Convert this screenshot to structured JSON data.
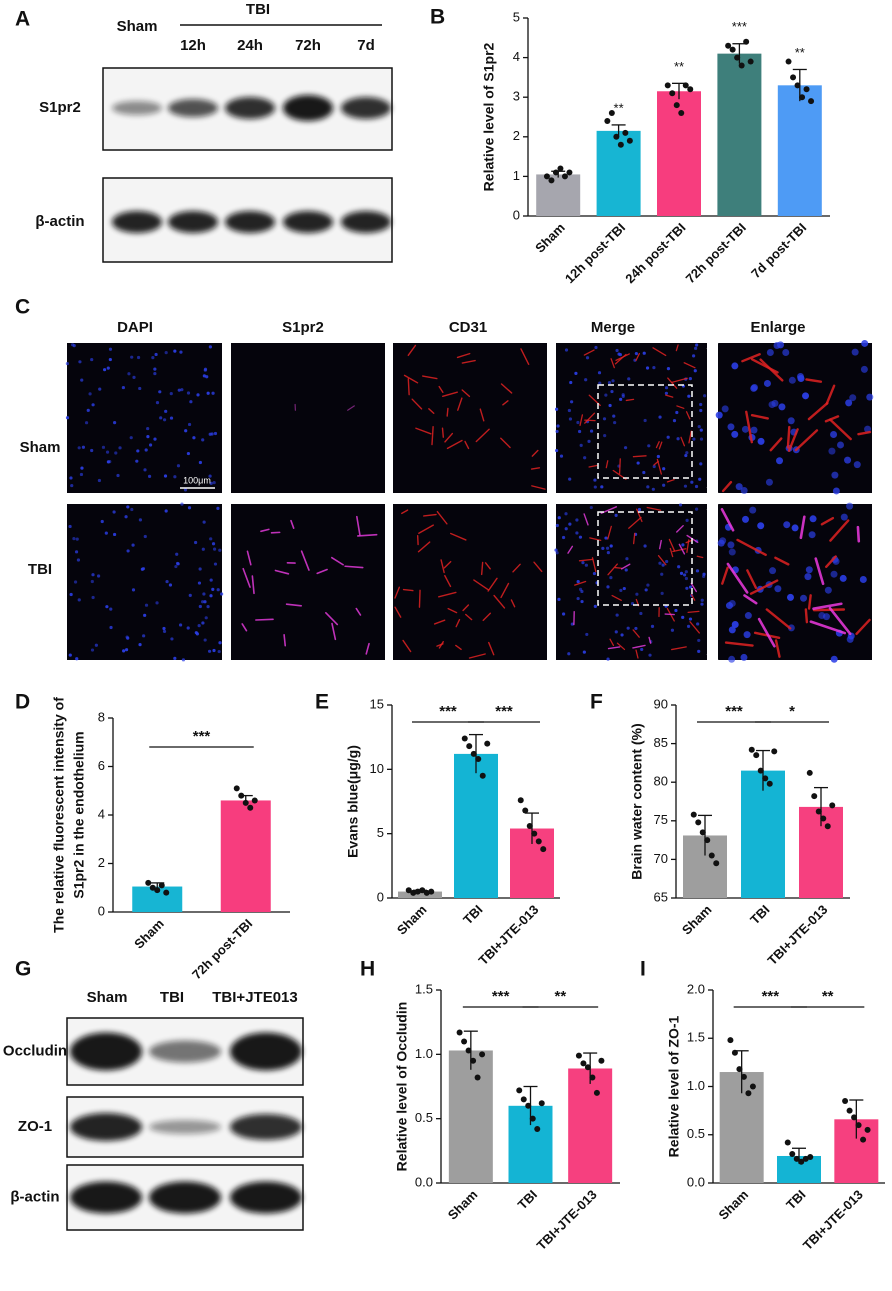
{
  "panel_labels": [
    "A",
    "B",
    "C",
    "D",
    "E",
    "F",
    "G",
    "H",
    "I"
  ],
  "blot_a": {
    "group": "TBI",
    "lanes": [
      "Sham",
      "12h",
      "24h",
      "72h",
      "7d"
    ],
    "rows": [
      "S1pr2",
      "β-actin"
    ]
  },
  "micrographs": {
    "columns": [
      "DAPI",
      "S1pr2",
      "CD31",
      "Merge",
      "Enlarge"
    ],
    "rows": [
      "Sham",
      "TBI"
    ],
    "scale_bar": "100μm"
  },
  "blot_g": {
    "lanes": [
      "Sham",
      "TBI",
      "TBI+JTE013"
    ],
    "rows": [
      "Occludin",
      "ZO-1",
      "β-actin"
    ]
  },
  "chart_data": [
    {
      "type": "bar",
      "ylabel": "Relative level of S1pr2",
      "categories": [
        "Sham",
        "12h post-TBI",
        "24h post-TBI",
        "72h post-TBI",
        "7d post-TBI"
      ],
      "values": [
        1.05,
        2.15,
        3.15,
        4.1,
        3.3
      ],
      "errors": [
        0.08,
        0.15,
        0.2,
        0.25,
        0.4
      ],
      "points": [
        [
          1.0,
          0.9,
          1.1,
          1.2,
          1.0,
          1.1
        ],
        [
          2.4,
          2.6,
          2.0,
          1.8,
          2.1,
          1.9
        ],
        [
          3.3,
          3.1,
          2.8,
          2.6,
          3.3,
          3.2
        ],
        [
          4.3,
          4.2,
          4.0,
          3.8,
          4.4,
          3.9
        ],
        [
          3.9,
          3.5,
          3.3,
          3.0,
          3.2,
          2.9
        ]
      ],
      "colors": [
        "#a6a6ae",
        "#17b5d3",
        "#f73d7e",
        "#3e7f7b",
        "#4e9bf5"
      ],
      "annotations": [
        null,
        "**",
        "**",
        "***",
        "**"
      ],
      "ylim": [
        0,
        5
      ],
      "yticks": [
        0,
        1,
        2,
        3,
        4,
        5
      ]
    },
    {
      "type": "bar",
      "ylabel": [
        "The relative fluorescent intensity of",
        "S1pr2 in the endothelium"
      ],
      "categories": [
        "Sham",
        "72h post-TBI"
      ],
      "values": [
        1.05,
        4.6
      ],
      "errors": [
        0.15,
        0.2
      ],
      "points": [
        [
          1.2,
          1.0,
          0.9,
          1.1,
          0.8
        ],
        [
          5.1,
          4.8,
          4.5,
          4.3,
          4.6
        ]
      ],
      "colors": [
        "#17b5d3",
        "#f73d7e"
      ],
      "comparisons": [
        {
          "label": "***",
          "between": [
            "Sham",
            "72h post-TBI"
          ]
        }
      ],
      "ylim": [
        0,
        8
      ],
      "yticks": [
        0,
        2,
        4,
        6,
        8
      ]
    },
    {
      "type": "bar",
      "ylabel": "Evans blue(μg/g)",
      "categories": [
        "Sham",
        "TBI",
        "TBI+JTE-013"
      ],
      "values": [
        0.5,
        11.2,
        5.4
      ],
      "errors": [
        0.1,
        1.5,
        1.2
      ],
      "points": [
        [
          0.6,
          0.4,
          0.5,
          0.6,
          0.4,
          0.5
        ],
        [
          12.4,
          11.8,
          11.2,
          10.8,
          9.5,
          12.0
        ],
        [
          7.6,
          6.8,
          5.6,
          5.0,
          4.4,
          3.8
        ]
      ],
      "colors": [
        "#9e9e9e",
        "#14b4d4",
        "#f6407f"
      ],
      "comparisons": [
        {
          "label": "***",
          "between": [
            "Sham",
            "TBI"
          ]
        },
        {
          "label": "***",
          "between": [
            "TBI",
            "TBI+JTE-013"
          ]
        }
      ],
      "ylim": [
        0,
        15
      ],
      "yticks": [
        0,
        5,
        10,
        15
      ]
    },
    {
      "type": "bar",
      "ylabel": "Brain water content (%)",
      "categories": [
        "Sham",
        "TBI",
        "TBI+JTE-013"
      ],
      "values": [
        73.1,
        81.5,
        76.8
      ],
      "errors": [
        2.6,
        2.6,
        2.5
      ],
      "points": [
        [
          75.8,
          74.8,
          73.5,
          72.5,
          70.5,
          69.5
        ],
        [
          84.2,
          83.5,
          81.5,
          80.5,
          79.8,
          84.0
        ],
        [
          81.2,
          78.2,
          76.2,
          75.3,
          74.3,
          77.0
        ]
      ],
      "colors": [
        "#9e9e9e",
        "#14b4d4",
        "#f6407f"
      ],
      "comparisons": [
        {
          "label": "***",
          "between": [
            "Sham",
            "TBI"
          ]
        },
        {
          "label": "*",
          "between": [
            "TBI",
            "TBI+JTE-013"
          ]
        }
      ],
      "ylim": [
        65,
        90
      ],
      "yticks": [
        65,
        70,
        75,
        80,
        85,
        90
      ]
    },
    {
      "type": "bar",
      "ylabel": "Relative level of Occludin",
      "categories": [
        "Sham",
        "TBI",
        "TBI+JTE-013"
      ],
      "values": [
        1.03,
        0.6,
        0.89
      ],
      "errors": [
        0.15,
        0.15,
        0.12
      ],
      "points": [
        [
          1.17,
          1.1,
          1.03,
          0.95,
          0.82,
          1.0
        ],
        [
          0.72,
          0.65,
          0.6,
          0.5,
          0.42,
          0.62
        ],
        [
          0.99,
          0.93,
          0.9,
          0.82,
          0.7,
          0.95
        ]
      ],
      "colors": [
        "#9e9e9e",
        "#14b4d4",
        "#f6407f"
      ],
      "comparisons": [
        {
          "label": "***",
          "between": [
            "Sham",
            "TBI"
          ]
        },
        {
          "label": "**",
          "between": [
            "TBI",
            "TBI+JTE-013"
          ]
        }
      ],
      "ylim": [
        0,
        1.5
      ],
      "yticks": [
        {
          "value": 0,
          "label": "0.0"
        },
        0.5,
        {
          "value": 1,
          "label": "1.0"
        },
        1.5
      ]
    },
    {
      "type": "bar",
      "ylabel": "Relative level of ZO-1",
      "categories": [
        "Sham",
        "TBI",
        "TBI+JTE-013"
      ],
      "values": [
        1.15,
        0.28,
        0.66
      ],
      "errors": [
        0.22,
        0.08,
        0.2
      ],
      "points": [
        [
          1.48,
          1.35,
          1.18,
          1.1,
          0.93,
          1.0
        ],
        [
          0.42,
          0.3,
          0.25,
          0.22,
          0.25,
          0.27
        ],
        [
          0.85,
          0.75,
          0.68,
          0.6,
          0.45,
          0.55
        ]
      ],
      "colors": [
        "#9e9e9e",
        "#14b4d4",
        "#f6407f"
      ],
      "comparisons": [
        {
          "label": "***",
          "between": [
            "Sham",
            "TBI"
          ]
        },
        {
          "label": "**",
          "between": [
            "TBI",
            "TBI+JTE-013"
          ]
        }
      ],
      "ylim": [
        0,
        2
      ],
      "yticks": [
        {
          "value": 0,
          "label": "0.0"
        },
        0.5,
        {
          "value": 1,
          "label": "1.0"
        },
        1.5,
        {
          "value": 2,
          "label": "2.0"
        }
      ]
    }
  ]
}
